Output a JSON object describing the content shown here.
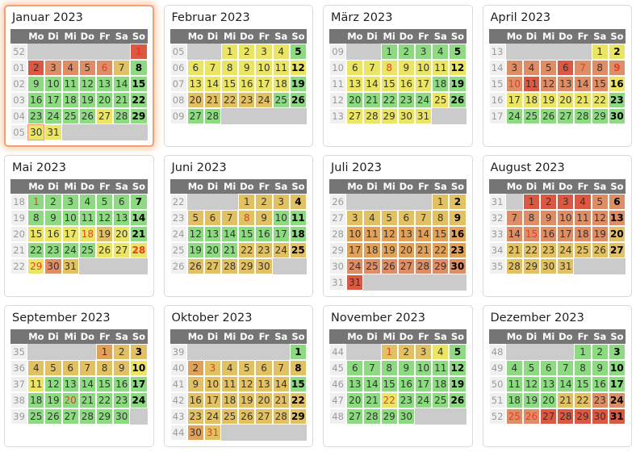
{
  "weekday_headers": [
    "Mo",
    "Di",
    "Mi",
    "Do",
    "Fr",
    "Sa",
    "So"
  ],
  "colors": {
    "g": "#8eda82",
    "y": "#ebe566",
    "t": "#e2c164",
    "o": "#e0a25a",
    "s": "#de8e66",
    "r": "#db5843",
    "empty": "#cbcbcb",
    "header_bg": "#757575",
    "header_text": "#ffffff",
    "weeknum_bg": "#f0f0f0",
    "weeknum_text": "#9a9a9a",
    "day_text": "#333333",
    "holiday_text": "#ee3b1f",
    "today_border": "#f29384",
    "card_border": "#d9d9d9",
    "highlight_border": "#f2a074",
    "highlight_glow": "#f9cfae"
  },
  "today": {
    "month_index": 0,
    "day": 30
  },
  "months": [
    {
      "name": "Januar 2023",
      "highlight": true,
      "start": 6,
      "weeks": [
        "52",
        "01",
        "02",
        "03",
        "04",
        "05"
      ],
      "cells": "rrsssstgggggggggggggggggggyggyy",
      "holidays": [
        1,
        6
      ]
    },
    {
      "name": "Februar 2023",
      "highlight": false,
      "start": 2,
      "weeks": [
        "05",
        "06",
        "07",
        "08",
        "09"
      ],
      "cells": "yyyygyyyyyyyyyyyyygtttttgggg",
      "holidays": []
    },
    {
      "name": "März 2023",
      "highlight": false,
      "start": 2,
      "weeks": [
        "09",
        "10",
        "11",
        "12",
        "13"
      ],
      "cells": "gggggyyyyyyyyyyyygggggggygyyyyy",
      "holidays": [
        8
      ]
    },
    {
      "name": "April 2023",
      "highlight": false,
      "start": 5,
      "weeks": [
        "13",
        "14",
        "15",
        "16",
        "17"
      ],
      "cells": "yysssrssssrssssyyyyyyygggggggg",
      "holidays": [
        7,
        9,
        10
      ]
    },
    {
      "name": "Mai 2023",
      "highlight": false,
      "start": 0,
      "weeks": [
        "18",
        "19",
        "20",
        "21",
        "22"
      ],
      "cells": "ggggggggggggggyyyytygggggyyyyst",
      "holidays": [
        1,
        18,
        28,
        29
      ]
    },
    {
      "name": "Juni 2023",
      "highlight": false,
      "start": 3,
      "weeks": [
        "22",
        "23",
        "24",
        "25",
        "26"
      ],
      "cells": "tttttttttggggggggggggttttttttt",
      "holidays": [
        8
      ]
    },
    {
      "name": "Juli 2023",
      "highlight": false,
      "start": 5,
      "weeks": [
        "26",
        "27",
        "28",
        "29",
        "30",
        "31"
      ],
      "cells": "tttttttttoooooooooooooosssssssr",
      "holidays": []
    },
    {
      "name": "August 2023",
      "highlight": false,
      "start": 1,
      "weeks": [
        "31",
        "32",
        "33",
        "34",
        "35"
      ],
      "cells": "rrrrssssssssssssssstttttttttttt",
      "holidays": [
        15
      ]
    },
    {
      "name": "September 2023",
      "highlight": false,
      "start": 4,
      "weeks": [
        "35",
        "36",
        "37",
        "38",
        "39"
      ],
      "cells": "ottttttttyyggggggggggggggggggg",
      "holidays": [
        20
      ]
    },
    {
      "name": "Oktober 2023",
      "highlight": false,
      "start": 6,
      "weeks": [
        "39",
        "40",
        "41",
        "42",
        "43",
        "44"
      ],
      "cells": "gottttttttttttgttttttttttttttot",
      "holidays": [
        3,
        31
      ]
    },
    {
      "name": "November 2023",
      "highlight": false,
      "start": 2,
      "weeks": [
        "44",
        "45",
        "46",
        "47",
        "48"
      ],
      "cells": "tttygggggggggggggggggygggggggg",
      "holidays": [
        1,
        22
      ]
    },
    {
      "name": "Dezember 2023",
      "highlight": false,
      "start": 4,
      "weeks": [
        "48",
        "49",
        "50",
        "51",
        "52"
      ],
      "cells": "ggggggggggggggggggggttssssrrrrr",
      "holidays": [
        25,
        26
      ]
    }
  ]
}
